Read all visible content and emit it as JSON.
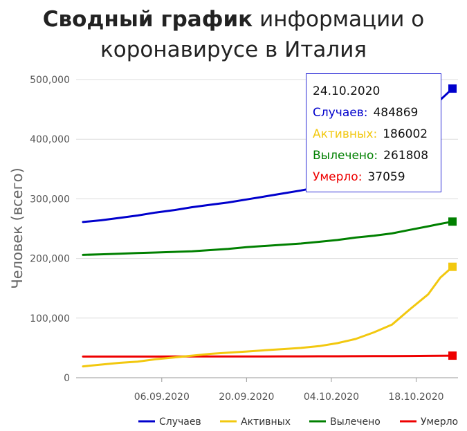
{
  "title": {
    "bold": "Сводный график",
    "rest_line1": "информации о",
    "line2": "коронавирусе в Италия"
  },
  "tooltip": {
    "date": "24.10.2020",
    "rows": [
      {
        "label": "Случаев:",
        "value": "484869",
        "color": "#0000cc"
      },
      {
        "label": "Активных:",
        "value": "186002",
        "color": "#f2c80f"
      },
      {
        "label": "Вылечено:",
        "value": "261808",
        "color": "#008000"
      },
      {
        "label": "Умерло:",
        "value": "37059",
        "color": "#ee0000"
      }
    ]
  },
  "chart_data": {
    "type": "line",
    "ylabel": "Человек (всего)",
    "ylim": [
      0,
      500000
    ],
    "yticks": [
      0,
      100000,
      200000,
      300000,
      400000,
      500000
    ],
    "ytick_labels": [
      "0",
      "100,000",
      "200,000",
      "300,000",
      "400,000",
      "500,000"
    ],
    "xlim": [
      "2020-08-24",
      "2020-10-24"
    ],
    "xticks": [
      "2020-09-06",
      "2020-09-20",
      "2020-10-04",
      "2020-10-18"
    ],
    "xtick_labels": [
      "06.09.2020",
      "20.09.2020",
      "04.10.2020",
      "18.10.2020"
    ],
    "grid": true,
    "legend_position": "bottom-right",
    "x": [
      "2020-08-24",
      "2020-08-27",
      "2020-08-30",
      "2020-09-02",
      "2020-09-05",
      "2020-09-08",
      "2020-09-11",
      "2020-09-14",
      "2020-09-17",
      "2020-09-20",
      "2020-09-23",
      "2020-09-26",
      "2020-09-29",
      "2020-10-02",
      "2020-10-05",
      "2020-10-08",
      "2020-10-11",
      "2020-10-14",
      "2020-10-17",
      "2020-10-20",
      "2020-10-22",
      "2020-10-24"
    ],
    "series": [
      {
        "name": "Случаев",
        "color": "#0000cc",
        "values": [
          261174,
          264000,
          268000,
          272000,
          277000,
          281000,
          286000,
          290000,
          294000,
          299000,
          304000,
          309000,
          314000,
          320000,
          328000,
          336000,
          349000,
          366000,
          402000,
          435000,
          466000,
          484869
        ]
      },
      {
        "name": "Активных",
        "color": "#f2c80f",
        "values": [
          19000,
          22000,
          25000,
          27000,
          31000,
          34000,
          37000,
          40000,
          42000,
          44000,
          46000,
          48000,
          50000,
          53000,
          58000,
          65000,
          76000,
          89000,
          115000,
          140000,
          168000,
          186002
        ]
      },
      {
        "name": "Вылечено",
        "color": "#008000",
        "values": [
          206000,
          207000,
          208000,
          209000,
          210000,
          211000,
          212000,
          214000,
          216000,
          219000,
          221000,
          223000,
          225000,
          228000,
          231000,
          235000,
          238000,
          242000,
          248000,
          254000,
          258000,
          261808
        ]
      },
      {
        "name": "Умерло",
        "color": "#ee0000",
        "values": [
          35441,
          35463,
          35483,
          35507,
          35534,
          35563,
          35597,
          35633,
          35668,
          35707,
          35758,
          35801,
          35851,
          35918,
          35986,
          36061,
          36166,
          36289,
          36474,
          36705,
          36902,
          37059
        ]
      }
    ]
  }
}
